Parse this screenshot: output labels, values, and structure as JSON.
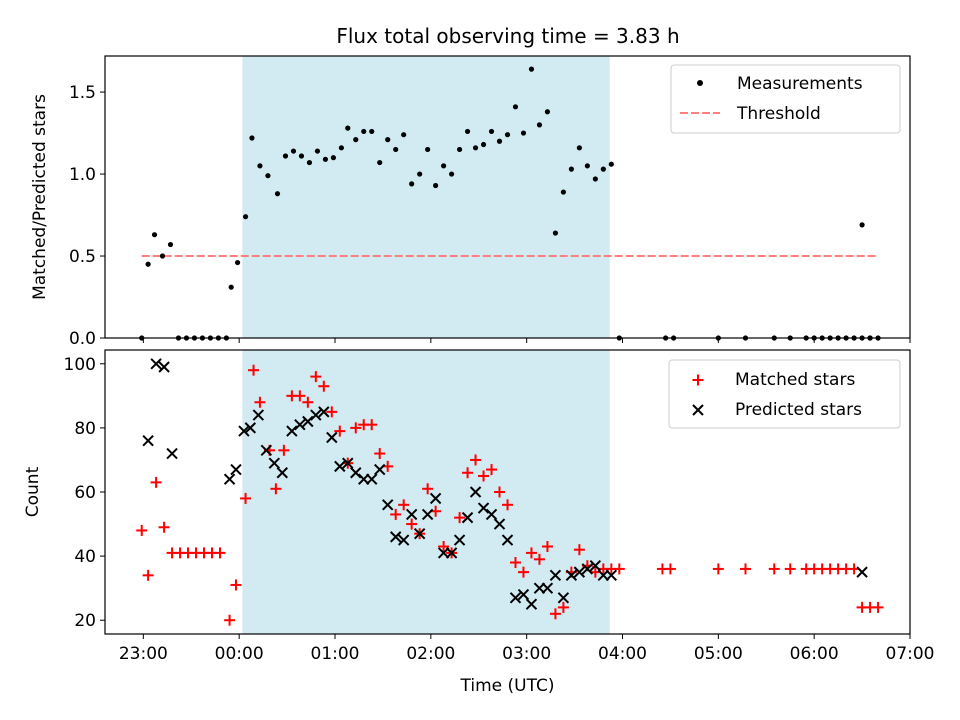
{
  "title": "Flux total observing time = 3.83 h",
  "colors": {
    "shade": "#add8e6",
    "measurement": "#000000",
    "threshold": "#ff7f7f",
    "matched": "#ff0000",
    "predicted": "#000000"
  },
  "chart_data": [
    {
      "type": "scatter",
      "ylabel": "Matched/Predicted stars",
      "xlabel": "",
      "ylim": [
        0,
        1.72
      ],
      "xlim": [
        "22:36",
        "07:00"
      ],
      "yticks": [
        "0.0",
        "0.5",
        "1.0",
        "1.5"
      ],
      "grid": false,
      "legend_position": "top-right",
      "shaded_interval": [
        "00:02",
        "03:52"
      ],
      "legend": [
        {
          "label": "Measurements",
          "marker": "dot"
        },
        {
          "label": "Threshold",
          "marker": "dashed-line"
        }
      ],
      "threshold": {
        "name": "Threshold",
        "y": 0.5,
        "x_range": [
          "22:59",
          "06:40"
        ]
      },
      "series": [
        {
          "name": "Measurements",
          "marker": "dot",
          "points": [
            [
              "22:59",
              0.0
            ],
            [
              "23:03",
              0.45
            ],
            [
              "23:07",
              0.63
            ],
            [
              "23:12",
              0.5
            ],
            [
              "23:17",
              0.57
            ],
            [
              "23:22",
              0.0
            ],
            [
              "23:27",
              0.0
            ],
            [
              "23:32",
              0.0
            ],
            [
              "23:37",
              0.0
            ],
            [
              "23:42",
              0.0
            ],
            [
              "23:47",
              0.0
            ],
            [
              "23:52",
              0.0
            ],
            [
              "23:55",
              0.31
            ],
            [
              "23:59",
              0.46
            ],
            [
              "00:04",
              0.74
            ],
            [
              "00:08",
              1.22
            ],
            [
              "00:13",
              1.05
            ],
            [
              "00:18",
              0.99
            ],
            [
              "00:24",
              0.88
            ],
            [
              "00:29",
              1.11
            ],
            [
              "00:34",
              1.14
            ],
            [
              "00:39",
              1.11
            ],
            [
              "00:44",
              1.07
            ],
            [
              "00:49",
              1.14
            ],
            [
              "00:54",
              1.09
            ],
            [
              "00:59",
              1.1
            ],
            [
              "01:04",
              1.16
            ],
            [
              "01:08",
              1.28
            ],
            [
              "01:13",
              1.21
            ],
            [
              "01:18",
              1.26
            ],
            [
              "01:23",
              1.26
            ],
            [
              "01:28",
              1.07
            ],
            [
              "01:33",
              1.21
            ],
            [
              "01:38",
              1.15
            ],
            [
              "01:43",
              1.24
            ],
            [
              "01:48",
              0.94
            ],
            [
              "01:53",
              1.0
            ],
            [
              "01:58",
              1.15
            ],
            [
              "02:03",
              0.93
            ],
            [
              "02:08",
              1.05
            ],
            [
              "02:13",
              1.0
            ],
            [
              "02:18",
              1.15
            ],
            [
              "02:23",
              1.26
            ],
            [
              "02:28",
              1.16
            ],
            [
              "02:33",
              1.18
            ],
            [
              "02:38",
              1.26
            ],
            [
              "02:43",
              1.2
            ],
            [
              "02:48",
              1.24
            ],
            [
              "02:53",
              1.41
            ],
            [
              "02:58",
              1.25
            ],
            [
              "03:03",
              1.64
            ],
            [
              "03:08",
              1.3
            ],
            [
              "03:13",
              1.38
            ],
            [
              "03:18",
              0.64
            ],
            [
              "03:23",
              0.89
            ],
            [
              "03:28",
              1.03
            ],
            [
              "03:33",
              1.16
            ],
            [
              "03:38",
              1.05
            ],
            [
              "03:43",
              0.97
            ],
            [
              "03:48",
              1.03
            ],
            [
              "03:53",
              1.06
            ],
            [
              "03:58",
              0.0
            ],
            [
              "04:27",
              0.0
            ],
            [
              "04:32",
              0.0
            ],
            [
              "05:00",
              0.0
            ],
            [
              "05:17",
              0.0
            ],
            [
              "05:35",
              0.0
            ],
            [
              "05:45",
              0.0
            ],
            [
              "05:55",
              0.0
            ],
            [
              "06:00",
              0.0
            ],
            [
              "06:05",
              0.0
            ],
            [
              "06:10",
              0.0
            ],
            [
              "06:15",
              0.0
            ],
            [
              "06:20",
              0.0
            ],
            [
              "06:25",
              0.0
            ],
            [
              "06:30",
              0.0
            ],
            [
              "06:35",
              0.0
            ],
            [
              "06:30",
              0.69
            ],
            [
              "06:35",
              0.0
            ],
            [
              "06:40",
              0.0
            ]
          ]
        }
      ]
    },
    {
      "type": "scatter",
      "ylabel": "Count",
      "xlabel": "Time (UTC)",
      "ylim": [
        15.7,
        104.3
      ],
      "xlim": [
        "22:36",
        "07:00"
      ],
      "yticks": [
        "20",
        "40",
        "60",
        "80",
        "100"
      ],
      "xticks": [
        "23:00",
        "00:00",
        "01:00",
        "02:00",
        "03:00",
        "04:00",
        "05:00",
        "06:00",
        "07:00"
      ],
      "grid": false,
      "legend_position": "top-right",
      "shaded_interval": [
        "00:02",
        "03:52"
      ],
      "legend": [
        {
          "label": "Matched stars",
          "marker": "plus"
        },
        {
          "label": "Predicted stars",
          "marker": "x"
        }
      ],
      "series": [
        {
          "name": "Matched stars",
          "marker": "plus",
          "points": [
            [
              "22:59",
              48
            ],
            [
              "23:03",
              34
            ],
            [
              "23:08",
              63
            ],
            [
              "23:13",
              49
            ],
            [
              "23:18",
              41
            ],
            [
              "23:23",
              41
            ],
            [
              "23:28",
              41
            ],
            [
              "23:33",
              41
            ],
            [
              "23:38",
              41
            ],
            [
              "23:43",
              41
            ],
            [
              "23:48",
              41
            ],
            [
              "23:54",
              20
            ],
            [
              "23:58",
              31
            ],
            [
              "00:04",
              58
            ],
            [
              "00:09",
              98
            ],
            [
              "00:13",
              88
            ],
            [
              "00:19",
              73
            ],
            [
              "00:23",
              61
            ],
            [
              "00:28",
              73
            ],
            [
              "00:33",
              90
            ],
            [
              "00:38",
              90
            ],
            [
              "00:43",
              88
            ],
            [
              "00:48",
              96
            ],
            [
              "00:53",
              93
            ],
            [
              "00:58",
              85
            ],
            [
              "01:03",
              79
            ],
            [
              "01:08",
              69
            ],
            [
              "01:13",
              80
            ],
            [
              "01:18",
              81
            ],
            [
              "01:23",
              81
            ],
            [
              "01:28",
              72
            ],
            [
              "01:33",
              68
            ],
            [
              "01:38",
              53
            ],
            [
              "01:43",
              56
            ],
            [
              "01:48",
              50
            ],
            [
              "01:53",
              47
            ],
            [
              "01:58",
              61
            ],
            [
              "02:03",
              54
            ],
            [
              "02:08",
              43
            ],
            [
              "02:13",
              41
            ],
            [
              "02:18",
              52
            ],
            [
              "02:23",
              66
            ],
            [
              "02:28",
              70
            ],
            [
              "02:33",
              65
            ],
            [
              "02:38",
              67
            ],
            [
              "02:43",
              60
            ],
            [
              "02:48",
              56
            ],
            [
              "02:53",
              38
            ],
            [
              "02:58",
              35
            ],
            [
              "03:03",
              41
            ],
            [
              "03:08",
              39
            ],
            [
              "03:13",
              43
            ],
            [
              "03:18",
              22
            ],
            [
              "03:23",
              24
            ],
            [
              "03:28",
              35
            ],
            [
              "03:33",
              42
            ],
            [
              "03:38",
              37
            ],
            [
              "03:43",
              35
            ],
            [
              "03:48",
              36
            ],
            [
              "03:53",
              36
            ],
            [
              "03:58",
              36
            ],
            [
              "04:25",
              36
            ],
            [
              "04:30",
              36
            ],
            [
              "05:00",
              36
            ],
            [
              "05:17",
              36
            ],
            [
              "05:35",
              36
            ],
            [
              "05:45",
              36
            ],
            [
              "05:55",
              36
            ],
            [
              "06:00",
              36
            ],
            [
              "06:05",
              36
            ],
            [
              "06:10",
              36
            ],
            [
              "06:15",
              36
            ],
            [
              "06:20",
              36
            ],
            [
              "06:25",
              36
            ],
            [
              "06:30",
              24
            ],
            [
              "06:35",
              24
            ],
            [
              "06:40",
              24
            ]
          ]
        },
        {
          "name": "Predicted stars",
          "marker": "x",
          "points": [
            [
              "23:03",
              76
            ],
            [
              "23:08",
              100
            ],
            [
              "23:13",
              99
            ],
            [
              "23:18",
              72
            ],
            [
              "23:54",
              64
            ],
            [
              "23:58",
              67
            ],
            [
              "00:03",
              79
            ],
            [
              "00:07",
              80
            ],
            [
              "00:12",
              84
            ],
            [
              "00:17",
              73
            ],
            [
              "00:22",
              69
            ],
            [
              "00:27",
              66
            ],
            [
              "00:33",
              79
            ],
            [
              "00:38",
              81
            ],
            [
              "00:43",
              82
            ],
            [
              "00:48",
              84
            ],
            [
              "00:53",
              85
            ],
            [
              "00:58",
              77
            ],
            [
              "01:03",
              68
            ],
            [
              "01:08",
              69
            ],
            [
              "01:13",
              66
            ],
            [
              "01:18",
              64
            ],
            [
              "01:23",
              64
            ],
            [
              "01:28",
              67
            ],
            [
              "01:33",
              56
            ],
            [
              "01:38",
              46
            ],
            [
              "01:43",
              45
            ],
            [
              "01:48",
              53
            ],
            [
              "01:53",
              47
            ],
            [
              "01:58",
              53
            ],
            [
              "02:03",
              58
            ],
            [
              "02:08",
              41
            ],
            [
              "02:13",
              41
            ],
            [
              "02:18",
              45
            ],
            [
              "02:23",
              52
            ],
            [
              "02:28",
              60
            ],
            [
              "02:33",
              55
            ],
            [
              "02:38",
              53
            ],
            [
              "02:43",
              50
            ],
            [
              "02:48",
              45
            ],
            [
              "02:53",
              27
            ],
            [
              "02:58",
              28
            ],
            [
              "03:03",
              25
            ],
            [
              "03:08",
              30
            ],
            [
              "03:13",
              30
            ],
            [
              "03:18",
              34
            ],
            [
              "03:23",
              27
            ],
            [
              "03:28",
              34
            ],
            [
              "03:33",
              35
            ],
            [
              "03:38",
              36
            ],
            [
              "03:43",
              37
            ],
            [
              "03:48",
              34
            ],
            [
              "03:53",
              34
            ],
            [
              "06:30",
              35
            ]
          ]
        }
      ]
    }
  ]
}
